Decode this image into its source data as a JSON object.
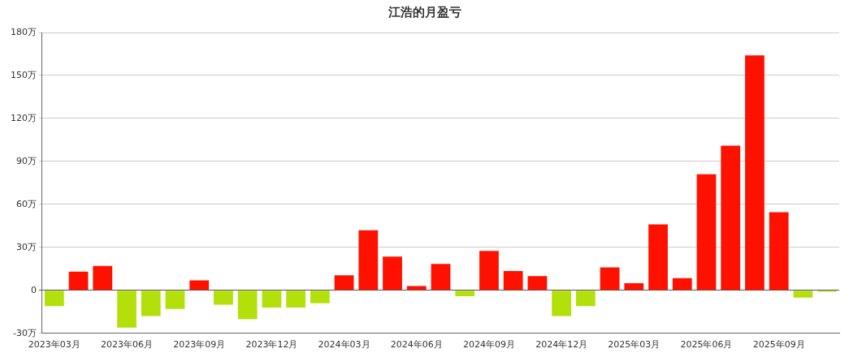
{
  "chart_data": {
    "type": "bar",
    "title": "江浩的月盈亏",
    "categories": [
      "2023年03月",
      null,
      null,
      "2023年06月",
      null,
      null,
      "2023年09月",
      null,
      null,
      "2023年12月",
      null,
      null,
      "2024年03月",
      null,
      null,
      "2024年06月",
      null,
      null,
      "2024年09月",
      null,
      null,
      "2024年12月",
      null,
      null,
      "2025年03月",
      null,
      null,
      "2025年06月",
      null,
      null,
      "2025年09月",
      null,
      null
    ],
    "values": [
      -11,
      13,
      17,
      -26,
      -18,
      -13,
      7,
      -10,
      -20,
      -12,
      -12,
      -9,
      10.5,
      42,
      23.5,
      3,
      18.5,
      -4,
      27.5,
      13.5,
      10,
      -18,
      -11,
      16,
      5,
      46,
      8.5,
      81,
      101,
      164,
      54.5,
      -5,
      -1
    ],
    "colors": [
      "#b3e00a",
      "#ff1100",
      "#ff1100",
      "#b3e00a",
      "#b3e00a",
      "#b3e00a",
      "#ff1100",
      "#b3e00a",
      "#b3e00a",
      "#b3e00a",
      "#b3e00a",
      "#b3e00a",
      "#ff1100",
      "#ff1100",
      "#ff1100",
      "#ff1100",
      "#ff1100",
      "#b3e00a",
      "#ff1100",
      "#ff1100",
      "#ff1100",
      "#b3e00a",
      "#b3e00a",
      "#ff1100",
      "#ff1100",
      "#ff1100",
      "#ff1100",
      "#ff1100",
      "#ff1100",
      "#ff1100",
      "#ff1100",
      "#b3e00a",
      "#b3e00a"
    ],
    "ylim": [
      -30,
      180
    ],
    "yticks": [
      {
        "value": -30,
        "label": "-30万"
      },
      {
        "value": 0,
        "label": "0"
      },
      {
        "value": 30,
        "label": "30万"
      },
      {
        "value": 60,
        "label": "60万"
      },
      {
        "value": 90,
        "label": "90万"
      },
      {
        "value": 120,
        "label": "120万"
      },
      {
        "value": 150,
        "label": "150万"
      },
      {
        "value": 180,
        "label": "180万"
      }
    ],
    "grid": "y",
    "legend": false
  }
}
